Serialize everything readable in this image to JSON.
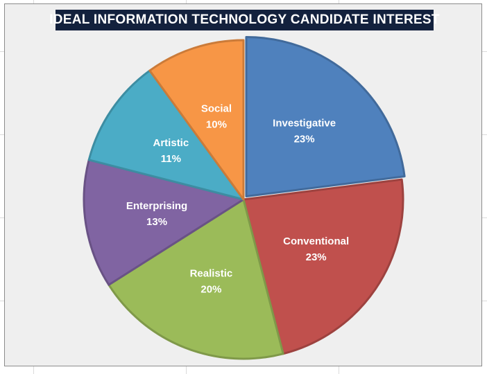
{
  "chart_data": {
    "type": "pie",
    "title": "IDEAL INFORMATION TECHNOLOGY CANDIDATE INTEREST",
    "slices": [
      {
        "label": "Investigative",
        "value": 23,
        "value_label": "23%",
        "color": "#4f81bd"
      },
      {
        "label": "Conventional",
        "value": 23,
        "value_label": "23%",
        "color": "#c0504d"
      },
      {
        "label": "Realistic",
        "value": 20,
        "value_label": "20%",
        "color": "#9bbb59"
      },
      {
        "label": "Enterprising",
        "value": 13,
        "value_label": "13%",
        "color": "#8064a2"
      },
      {
        "label": "Artistic",
        "value": 11,
        "value_label": "11%",
        "color": "#4bacc6"
      },
      {
        "label": "Social",
        "value": 10,
        "value_label": "10%",
        "color": "#f79646"
      }
    ],
    "start": "12 o'clock",
    "direction": "clockwise",
    "exploded_slice": "Investigative",
    "legend": "none"
  }
}
